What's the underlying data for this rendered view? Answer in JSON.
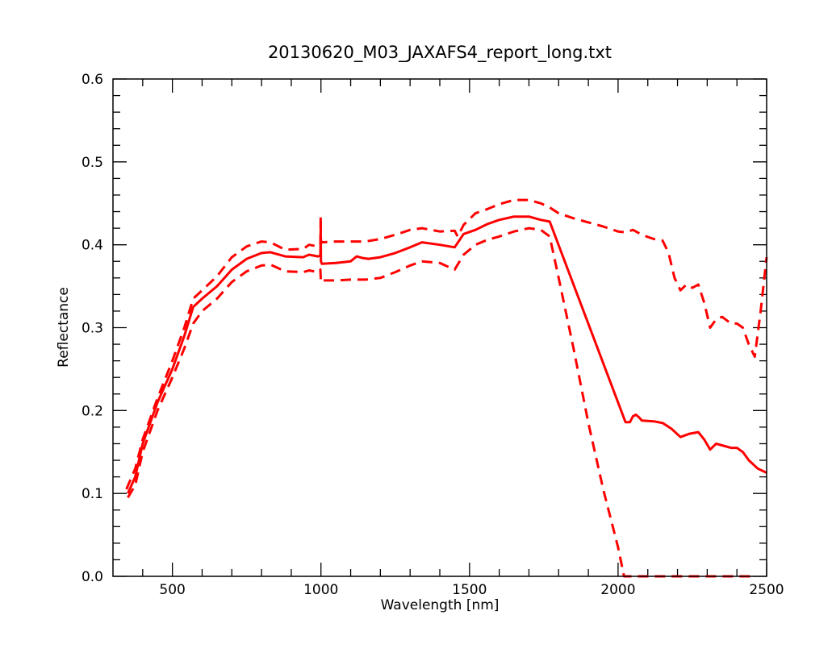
{
  "chart_data": {
    "type": "line",
    "title": "20130620_M03_JAXAFS4_report_long.txt",
    "xlabel": "Wavelength [nm]",
    "ylabel": "Reflectance",
    "xlim": [
      300,
      2500
    ],
    "ylim": [
      0.0,
      0.6
    ],
    "x_ticks": [
      500,
      1000,
      1500,
      2000,
      2500
    ],
    "x_tick_labels": [
      "500",
      "1000",
      "1500",
      "2000",
      "2500"
    ],
    "y_ticks": [
      0.0,
      0.1,
      0.2,
      0.3,
      0.4,
      0.5,
      0.6
    ],
    "y_tick_labels": [
      "0.0",
      "0.1",
      "0.2",
      "0.3",
      "0.4",
      "0.5",
      "0.6"
    ],
    "grid": false,
    "legend": "none",
    "color": "#ff0000",
    "series": [
      {
        "style": "solid",
        "points": [
          [
            350,
            0.1
          ],
          [
            375,
            0.12
          ],
          [
            400,
            0.16
          ],
          [
            450,
            0.21
          ],
          [
            500,
            0.25
          ],
          [
            540,
            0.29
          ],
          [
            570,
            0.325
          ],
          [
            600,
            0.335
          ],
          [
            650,
            0.35
          ],
          [
            700,
            0.37
          ],
          [
            750,
            0.383
          ],
          [
            800,
            0.39
          ],
          [
            830,
            0.391
          ],
          [
            880,
            0.386
          ],
          [
            940,
            0.385
          ],
          [
            960,
            0.388
          ],
          [
            990,
            0.386
          ],
          [
            998,
            0.387
          ],
          [
            999,
            0.42
          ],
          [
            1000,
            0.38
          ],
          [
            1003,
            0.377
          ],
          [
            1050,
            0.378
          ],
          [
            1100,
            0.38
          ],
          [
            1120,
            0.386
          ],
          [
            1140,
            0.384
          ],
          [
            1160,
            0.383
          ],
          [
            1200,
            0.385
          ],
          [
            1250,
            0.39
          ],
          [
            1300,
            0.397
          ],
          [
            1340,
            0.403
          ],
          [
            1400,
            0.4
          ],
          [
            1450,
            0.397
          ],
          [
            1480,
            0.413
          ],
          [
            1520,
            0.418
          ],
          [
            1560,
            0.425
          ],
          [
            1600,
            0.43
          ],
          [
            1650,
            0.434
          ],
          [
            1700,
            0.434
          ],
          [
            1740,
            0.43
          ],
          [
            1770,
            0.428
          ],
          [
            2025,
            0.186
          ],
          [
            2040,
            0.186
          ],
          [
            2050,
            0.193
          ],
          [
            2060,
            0.195
          ],
          [
            2070,
            0.192
          ],
          [
            2080,
            0.188
          ],
          [
            2120,
            0.187
          ],
          [
            2150,
            0.185
          ],
          [
            2180,
            0.178
          ],
          [
            2210,
            0.168
          ],
          [
            2240,
            0.172
          ],
          [
            2270,
            0.174
          ],
          [
            2290,
            0.165
          ],
          [
            2310,
            0.153
          ],
          [
            2330,
            0.16
          ],
          [
            2350,
            0.158
          ],
          [
            2380,
            0.155
          ],
          [
            2400,
            0.155
          ],
          [
            2420,
            0.15
          ],
          [
            2440,
            0.14
          ],
          [
            2470,
            0.13
          ],
          [
            2500,
            0.125
          ]
        ]
      },
      {
        "style": "dashed",
        "points": [
          [
            345,
            0.105
          ],
          [
            375,
            0.13
          ],
          [
            400,
            0.165
          ],
          [
            450,
            0.215
          ],
          [
            500,
            0.26
          ],
          [
            540,
            0.3
          ],
          [
            570,
            0.335
          ],
          [
            600,
            0.345
          ],
          [
            650,
            0.362
          ],
          [
            700,
            0.385
          ],
          [
            750,
            0.398
          ],
          [
            800,
            0.404
          ],
          [
            830,
            0.403
          ],
          [
            880,
            0.394
          ],
          [
            940,
            0.395
          ],
          [
            960,
            0.4
          ],
          [
            990,
            0.398
          ],
          [
            998,
            0.4
          ],
          [
            999,
            0.435
          ],
          [
            1000,
            0.405
          ],
          [
            1003,
            0.403
          ],
          [
            1050,
            0.404
          ],
          [
            1100,
            0.404
          ],
          [
            1150,
            0.404
          ],
          [
            1200,
            0.407
          ],
          [
            1250,
            0.412
          ],
          [
            1300,
            0.418
          ],
          [
            1340,
            0.42
          ],
          [
            1400,
            0.416
          ],
          [
            1450,
            0.417
          ],
          [
            1460,
            0.41
          ],
          [
            1480,
            0.424
          ],
          [
            1520,
            0.438
          ],
          [
            1560,
            0.443
          ],
          [
            1600,
            0.449
          ],
          [
            1650,
            0.454
          ],
          [
            1700,
            0.454
          ],
          [
            1740,
            0.45
          ],
          [
            1770,
            0.445
          ],
          [
            1800,
            0.438
          ],
          [
            1850,
            0.432
          ],
          [
            1900,
            0.427
          ],
          [
            1950,
            0.422
          ],
          [
            2000,
            0.416
          ],
          [
            2025,
            0.415
          ],
          [
            2050,
            0.418
          ],
          [
            2080,
            0.412
          ],
          [
            2120,
            0.407
          ],
          [
            2150,
            0.405
          ],
          [
            2170,
            0.39
          ],
          [
            2190,
            0.36
          ],
          [
            2210,
            0.345
          ],
          [
            2230,
            0.352
          ],
          [
            2250,
            0.348
          ],
          [
            2270,
            0.352
          ],
          [
            2290,
            0.33
          ],
          [
            2310,
            0.3
          ],
          [
            2330,
            0.31
          ],
          [
            2350,
            0.313
          ],
          [
            2380,
            0.305
          ],
          [
            2400,
            0.305
          ],
          [
            2420,
            0.3
          ],
          [
            2440,
            0.28
          ],
          [
            2460,
            0.265
          ],
          [
            2480,
            0.32
          ],
          [
            2500,
            0.385
          ]
        ]
      },
      {
        "style": "dashed",
        "points": [
          [
            350,
            0.095
          ],
          [
            375,
            0.11
          ],
          [
            400,
            0.15
          ],
          [
            450,
            0.2
          ],
          [
            500,
            0.24
          ],
          [
            540,
            0.275
          ],
          [
            570,
            0.305
          ],
          [
            600,
            0.32
          ],
          [
            650,
            0.335
          ],
          [
            700,
            0.355
          ],
          [
            750,
            0.368
          ],
          [
            800,
            0.375
          ],
          [
            830,
            0.376
          ],
          [
            880,
            0.368
          ],
          [
            940,
            0.367
          ],
          [
            960,
            0.369
          ],
          [
            990,
            0.367
          ],
          [
            998,
            0.37
          ],
          [
            1000,
            0.355
          ],
          [
            1003,
            0.357
          ],
          [
            1050,
            0.357
          ],
          [
            1100,
            0.358
          ],
          [
            1150,
            0.358
          ],
          [
            1200,
            0.36
          ],
          [
            1250,
            0.367
          ],
          [
            1300,
            0.375
          ],
          [
            1340,
            0.38
          ],
          [
            1400,
            0.378
          ],
          [
            1450,
            0.37
          ],
          [
            1480,
            0.388
          ],
          [
            1520,
            0.4
          ],
          [
            1560,
            0.406
          ],
          [
            1600,
            0.41
          ],
          [
            1650,
            0.416
          ],
          [
            1700,
            0.42
          ],
          [
            1740,
            0.418
          ],
          [
            1770,
            0.41
          ],
          [
            1800,
            0.36
          ],
          [
            1850,
            0.275
          ],
          [
            1900,
            0.185
          ],
          [
            1950,
            0.105
          ],
          [
            2000,
            0.035
          ],
          [
            2020,
            0.0
          ],
          [
            2100,
            0.0
          ],
          [
            2200,
            0.0
          ],
          [
            2300,
            0.0
          ],
          [
            2400,
            0.0
          ],
          [
            2460,
            0.0
          ]
        ]
      }
    ]
  }
}
